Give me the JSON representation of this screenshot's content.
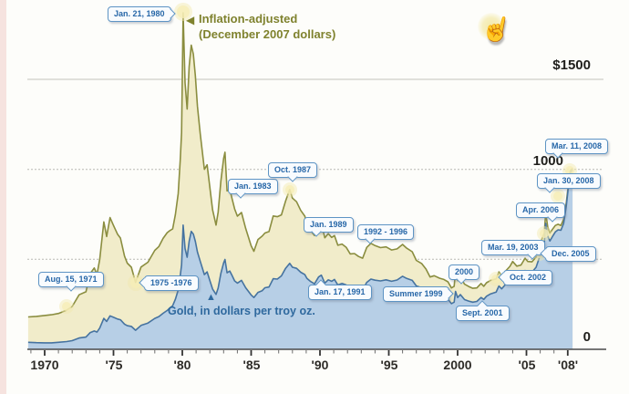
{
  "page": {
    "background": "#fdfdfa"
  },
  "cursor": {
    "name": "pointing-hand",
    "glyph": "☝"
  },
  "chart_data": {
    "type": "area",
    "title": "",
    "x": [
      1968.8,
      1969.4,
      1970,
      1970.5,
      1971,
      1971.6,
      1972,
      1972.5,
      1973,
      1973.3,
      1973.6,
      1973.8,
      1974,
      1974.3,
      1974.5,
      1974.75,
      1975,
      1975.3,
      1975.5,
      1975.8,
      1976,
      1976.3,
      1976.6,
      1977,
      1977.5,
      1978,
      1978.3,
      1978.6,
      1978.9,
      1979.1,
      1979.3,
      1979.5,
      1979.7,
      1979.85,
      1979.95,
      1980.06,
      1980.2,
      1980.35,
      1980.5,
      1980.65,
      1980.8,
      1980.95,
      1981.1,
      1981.3,
      1981.6,
      1981.8,
      1982,
      1982.2,
      1982.45,
      1982.6,
      1982.8,
      1983,
      1983.1,
      1983.25,
      1983.45,
      1983.6,
      1983.8,
      1984,
      1984.3,
      1984.6,
      1985,
      1985.2,
      1985.5,
      1985.8,
      1986,
      1986.3,
      1986.6,
      1986.9,
      1987.2,
      1987.5,
      1987.8,
      1988,
      1988.3,
      1988.6,
      1988.9,
      1989.05,
      1989.3,
      1989.6,
      1989.9,
      1990.1,
      1990.35,
      1990.6,
      1990.85,
      1991.05,
      1991.3,
      1991.6,
      1991.9,
      1992.2,
      1992.5,
      1992.8,
      1993.1,
      1993.4,
      1993.7,
      1994,
      1994.4,
      1994.8,
      1995.2,
      1995.6,
      1996,
      1996.3,
      1996.7,
      1997,
      1997.4,
      1997.7,
      1998,
      1998.3,
      1998.7,
      1999,
      1999.3,
      1999.55,
      1999.75,
      1999.85,
      2000,
      2000.2,
      2000.5,
      2000.8,
      2001.1,
      2001.4,
      2001.7,
      2001.9,
      2002.1,
      2002.4,
      2002.8,
      2003,
      2003.2,
      2003.5,
      2003.8,
      2004,
      2004.3,
      2004.6,
      2004.9,
      2005.1,
      2005.4,
      2005.7,
      2005.95,
      2006.1,
      2006.3,
      2006.4,
      2006.55,
      2006.7,
      2006.9,
      2007.1,
      2007.3,
      2007.5,
      2007.7,
      2007.9,
      2008.08,
      2008.2,
      2008.35
    ],
    "series": [
      {
        "name": "Inflation-adjusted (December 2007 dollars)",
        "line_color": "#8a8d3f",
        "fill_color": "#f1ecca",
        "values": [
          180,
          183,
          188,
          192,
          199,
          218,
          238,
          303,
          320,
          420,
          452,
          416,
          500,
          708,
          627,
          732,
          688,
          639,
          618,
          518,
          479,
          456,
          372,
          457,
          484,
          550,
          571,
          616,
          648,
          660,
          669,
          749,
          866,
          1050,
          1205,
          1870,
          1480,
          1335,
          1570,
          1690,
          1640,
          1520,
          1350,
          1200,
          1000,
          1025,
          900,
          775,
          690,
          762,
          935,
          1060,
          1095,
          880,
          890,
          840,
          780,
          740,
          760,
          672,
          575,
          545,
          610,
          629,
          646,
          654,
          741,
          737,
          747,
          824,
          888,
          840,
          820,
          772,
          740,
          698,
          663,
          632,
          690,
          700,
          620,
          643,
          622,
          632,
          578,
          585,
          567,
          530,
          532,
          516,
          506,
          566,
          589,
          576,
          565,
          569,
          552,
          558,
          583,
          562,
          542,
          494,
          476,
          446,
          402,
          409,
          395,
          388,
          375,
          341,
          350,
          429,
          382,
          401,
          362,
          349,
          339,
          341,
          366,
          350,
          370,
          383,
          391,
          430,
          408,
          436,
          461,
          488,
          462,
          468,
          506,
          488,
          486,
          513,
          570,
          609,
          645,
          760,
          678,
          646,
          668,
          688,
          695,
          688,
          722,
          818,
          938,
          995,
          1005
        ]
      },
      {
        "name": "Gold, in dollars per troy oz.",
        "line_color": "#4673a0",
        "fill_color": "#b7cfe6",
        "values": [
          39,
          37,
          36,
          36,
          39,
          43,
          48,
          63,
          68,
          92,
          102,
          96,
          118,
          172,
          155,
          186,
          178,
          168,
          164,
          140,
          131,
          127,
          106,
          133,
          146,
          172,
          182,
          200,
          216,
          230,
          242,
          278,
          330,
          408,
          470,
          690,
          560,
          512,
          600,
          655,
          640,
          600,
          540,
          490,
          415,
          430,
          382,
          335,
          305,
          340,
          422,
          480,
          499,
          425,
          435,
          412,
          380,
          368,
          383,
          342,
          302,
          288,
          316,
          326,
          342,
          346,
          392,
          390,
          408,
          450,
          478,
          456,
          450,
          428,
          415,
          394,
          378,
          364,
          402,
          412,
          368,
          386,
          378,
          388,
          358,
          366,
          358,
          338,
          342,
          334,
          330,
          372,
          390,
          384,
          380,
          386,
          378,
          385,
          406,
          394,
          383,
          352,
          342,
          322,
          292,
          299,
          290,
          286,
          278,
          254,
          262,
          322,
          288,
          304,
          276,
          268,
          262,
          266,
          288,
          277,
          295,
          308,
          318,
          352,
          336,
          362,
          386,
          412,
          394,
          402,
          438,
          426,
          428,
          456,
          512,
          552,
          590,
          700,
          628,
          602,
          628,
          652,
          664,
          662,
          700,
          800,
          925,
          985,
          1000
        ]
      }
    ],
    "ylim": [
      0,
      1950
    ],
    "grid": true,
    "y_gridlines": [
      {
        "value": 1500,
        "style": "solid"
      },
      {
        "value": 1000,
        "style": "dotted"
      },
      {
        "value": 500,
        "style": "dotted"
      }
    ],
    "y_tick_labels": [
      {
        "value": 1500,
        "label": "$1500"
      },
      {
        "value": 1000,
        "label": "1000"
      },
      {
        "value": 0,
        "label": "0"
      }
    ],
    "x_ticks": [
      {
        "year": 1970,
        "label": "1970"
      },
      {
        "year": 1975,
        "label": "'75"
      },
      {
        "year": 1980,
        "label": "'80"
      },
      {
        "year": 1985,
        "label": "'85"
      },
      {
        "year": 1990,
        "label": "'90"
      },
      {
        "year": 1995,
        "label": "'95"
      },
      {
        "year": 2000,
        "label": "2000"
      },
      {
        "year": 2005,
        "label": "'05"
      },
      {
        "year": 2008,
        "label": "'08'"
      }
    ],
    "legend": {
      "real_line1": "Inflation-adjusted",
      "real_line2": "(December 2007 dollars)",
      "real_arrow": "◀",
      "nominal_label": "Gold, in dollars per troy oz.",
      "nominal_marker": "▲"
    },
    "annotations": [
      {
        "text": "Jan. 21, 1980"
      },
      {
        "text": "Aug. 15, 1971"
      },
      {
        "text": "1975 -1976"
      },
      {
        "text": "Jan. 1983"
      },
      {
        "text": "Oct. 1987"
      },
      {
        "text": "Jan. 1989"
      },
      {
        "text": "Jan. 17, 1991"
      },
      {
        "text": "1992 - 1996"
      },
      {
        "text": "Summer 1999"
      },
      {
        "text": "2000"
      },
      {
        "text": "Sept. 2001"
      },
      {
        "text": "Mar. 19, 2003"
      },
      {
        "text": "Oct. 2002"
      },
      {
        "text": "Dec. 2005"
      },
      {
        "text": "Apr. 2006"
      },
      {
        "text": "Jan. 30, 2008"
      },
      {
        "text": "Mar. 11, 2008"
      }
    ]
  }
}
